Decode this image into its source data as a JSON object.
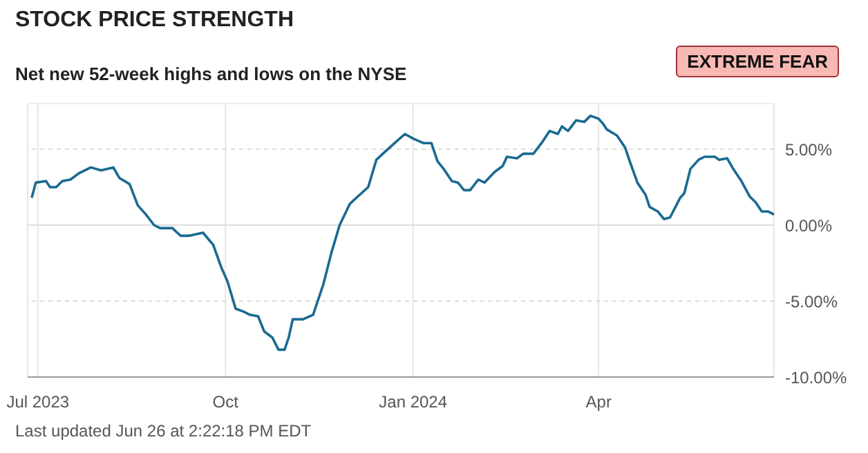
{
  "chart_data": {
    "type": "line",
    "title": "STOCK PRICE STRENGTH",
    "subtitle": "Net new 52-week highs and lows on the NYSE",
    "annotations": [
      "EXTREME FEAR",
      "Last updated Jun 26 at 2:22:18 PM EDT"
    ],
    "x": [
      "2023-06-28",
      "2023-06-30",
      "2023-07-05",
      "2023-07-07",
      "2023-07-10",
      "2023-07-13",
      "2023-07-17",
      "2023-07-21",
      "2023-07-27",
      "2023-08-01",
      "2023-08-07",
      "2023-08-10",
      "2023-08-15",
      "2023-08-19",
      "2023-08-23",
      "2023-08-27",
      "2023-08-30",
      "2023-09-05",
      "2023-09-09",
      "2023-09-13",
      "2023-09-20",
      "2023-09-25",
      "2023-09-29",
      "2023-10-02",
      "2023-10-06",
      "2023-10-10",
      "2023-10-13",
      "2023-10-17",
      "2023-10-20",
      "2023-10-24",
      "2023-10-27",
      "2023-10-30",
      "2023-11-01",
      "2023-11-03",
      "2023-11-08",
      "2023-11-13",
      "2023-11-18",
      "2023-11-22",
      "2023-11-26",
      "2023-12-01",
      "2023-12-05",
      "2023-12-10",
      "2023-12-14",
      "2023-12-18",
      "2023-12-23",
      "2023-12-28",
      "2024-01-01",
      "2024-01-06",
      "2024-01-10",
      "2024-01-13",
      "2024-01-16",
      "2024-01-20",
      "2024-01-23",
      "2024-01-26",
      "2024-01-29",
      "2024-02-02",
      "2024-02-05",
      "2024-02-10",
      "2024-02-14",
      "2024-02-16",
      "2024-02-21",
      "2024-02-24",
      "2024-02-29",
      "2024-03-04",
      "2024-03-08",
      "2024-03-12",
      "2024-03-14",
      "2024-03-17",
      "2024-03-21",
      "2024-03-25",
      "2024-03-28",
      "2024-04-01",
      "2024-04-03",
      "2024-04-05",
      "2024-04-10",
      "2024-04-14",
      "2024-04-16",
      "2024-04-20",
      "2024-04-24",
      "2024-04-26",
      "2024-04-30",
      "2024-05-03",
      "2024-05-06",
      "2024-05-11",
      "2024-05-13",
      "2024-05-16",
      "2024-05-20",
      "2024-05-23",
      "2024-05-28",
      "2024-05-30",
      "2024-06-03",
      "2024-06-06",
      "2024-06-10",
      "2024-06-14",
      "2024-06-17",
      "2024-06-20",
      "2024-06-23",
      "2024-06-26"
    ],
    "series": [
      {
        "color": "#1a6a91",
        "values": [
          1.8,
          2.8,
          2.9,
          2.5,
          2.5,
          2.9,
          3.0,
          3.4,
          3.8,
          3.6,
          3.8,
          3.1,
          2.7,
          1.3,
          0.7,
          0.0,
          -0.2,
          -0.2,
          -0.7,
          -0.7,
          -0.5,
          -1.3,
          -2.8,
          -3.7,
          -5.5,
          -5.7,
          -5.9,
          -6.0,
          -7.0,
          -7.4,
          -8.2,
          -8.2,
          -7.4,
          -6.2,
          -6.2,
          -5.9,
          -3.9,
          -1.8,
          0.0,
          1.4,
          1.9,
          2.5,
          4.3,
          4.8,
          5.4,
          6.0,
          5.7,
          5.4,
          5.4,
          4.2,
          3.7,
          2.9,
          2.8,
          2.3,
          2.3,
          3.0,
          2.8,
          3.5,
          3.9,
          4.5,
          4.4,
          4.7,
          4.7,
          5.4,
          6.2,
          6.0,
          6.5,
          6.2,
          6.9,
          6.8,
          7.2,
          7.0,
          6.7,
          6.3,
          5.9,
          5.1,
          4.3,
          2.8,
          2.0,
          1.2,
          0.9,
          0.4,
          0.5,
          1.8,
          2.1,
          3.7,
          4.3,
          4.5,
          4.5,
          4.3,
          4.4,
          3.7,
          2.9,
          1.9,
          1.5,
          0.9,
          0.9,
          0.7
        ]
      }
    ],
    "xlim": [
      "2023-06-26",
      "2024-06-26"
    ],
    "xticks": [
      {
        "value": "2023-07-01",
        "label": "Jul 2023"
      },
      {
        "value": "2023-10-01",
        "label": "Oct"
      },
      {
        "value": "2024-01-01",
        "label": "Jan 2024"
      },
      {
        "value": "2024-04-01",
        "label": "Apr"
      }
    ],
    "ylim": [
      -10,
      8
    ],
    "yticks": [
      {
        "value": -10,
        "label": "-10.00%"
      },
      {
        "value": -5,
        "label": "-5.00%"
      },
      {
        "value": 0,
        "label": "0.00%"
      },
      {
        "value": 5,
        "label": "5.00%"
      }
    ],
    "grid": true,
    "marker": "none",
    "line_style": "solid"
  }
}
